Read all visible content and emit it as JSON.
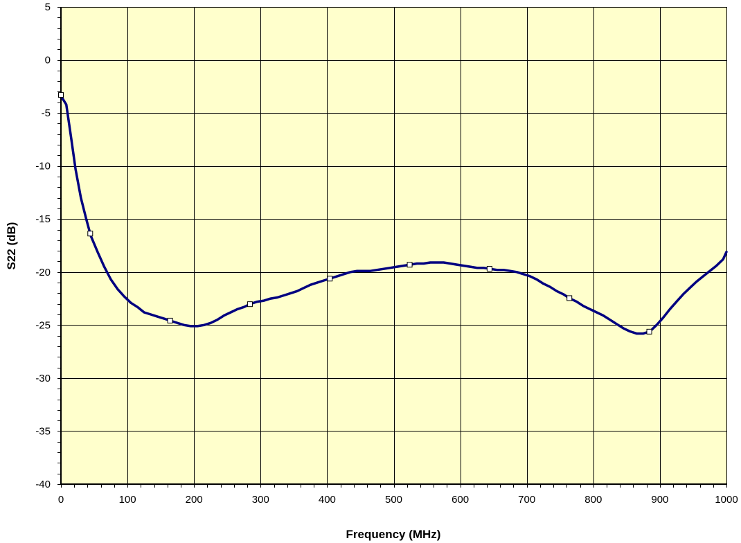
{
  "chart_data": {
    "type": "line",
    "title": "",
    "xlabel": "Frequency (MHz)",
    "ylabel": "S22 (dB)",
    "xlim": [
      0,
      1000
    ],
    "ylim": [
      -40,
      5
    ],
    "xticks": [
      0,
      100,
      200,
      300,
      400,
      500,
      600,
      700,
      800,
      900,
      1000
    ],
    "yticks": [
      5,
      0,
      -5,
      -10,
      -15,
      -20,
      -25,
      -30,
      -35,
      -40
    ],
    "grid": true,
    "legend": "none",
    "colors": {
      "plot_bg": "#ffffcc",
      "line": "#000080",
      "grid": "#000000",
      "marker_fill": "#ffffff"
    },
    "series": [
      {
        "x": [
          0,
          3,
          8,
          15,
          22,
          30,
          38,
          45,
          55,
          65,
          75,
          85,
          95,
          105,
          115,
          125,
          135,
          145,
          155,
          165,
          175,
          185,
          195,
          205,
          215,
          225,
          235,
          245,
          255,
          265,
          275,
          285,
          295,
          305,
          315,
          325,
          335,
          345,
          355,
          365,
          375,
          385,
          395,
          405,
          415,
          425,
          435,
          445,
          455,
          465,
          475,
          485,
          495,
          505,
          515,
          525,
          535,
          545,
          555,
          565,
          575,
          585,
          595,
          605,
          615,
          625,
          635,
          645,
          655,
          665,
          675,
          685,
          695,
          705,
          715,
          725,
          735,
          745,
          755,
          765,
          775,
          785,
          795,
          805,
          815,
          825,
          835,
          845,
          855,
          865,
          875,
          885,
          895,
          905,
          915,
          925,
          935,
          945,
          955,
          965,
          975,
          985,
          995,
          1000
        ],
        "y": [
          -3.3,
          -3.7,
          -4.2,
          -7.2,
          -10.3,
          -13.0,
          -15.0,
          -16.6,
          -18.1,
          -19.5,
          -20.7,
          -21.6,
          -22.3,
          -22.9,
          -23.3,
          -23.8,
          -24.0,
          -24.2,
          -24.4,
          -24.6,
          -24.8,
          -25.0,
          -25.1,
          -25.1,
          -25.0,
          -24.8,
          -24.5,
          -24.1,
          -23.8,
          -23.5,
          -23.3,
          -23.0,
          -22.8,
          -22.7,
          -22.5,
          -22.4,
          -22.2,
          -22.0,
          -21.8,
          -21.5,
          -21.2,
          -21.0,
          -20.8,
          -20.6,
          -20.4,
          -20.2,
          -20.0,
          -19.9,
          -19.9,
          -19.9,
          -19.8,
          -19.7,
          -19.6,
          -19.5,
          -19.4,
          -19.3,
          -19.2,
          -19.2,
          -19.1,
          -19.1,
          -19.1,
          -19.2,
          -19.3,
          -19.4,
          -19.5,
          -19.6,
          -19.6,
          -19.7,
          -19.8,
          -19.8,
          -19.9,
          -20.0,
          -20.2,
          -20.4,
          -20.7,
          -21.1,
          -21.4,
          -21.8,
          -22.1,
          -22.5,
          -22.8,
          -23.2,
          -23.5,
          -23.8,
          -24.1,
          -24.5,
          -24.9,
          -25.3,
          -25.6,
          -25.8,
          -25.8,
          -25.6,
          -25.0,
          -24.3,
          -23.5,
          -22.8,
          -22.1,
          -21.5,
          -20.9,
          -20.4,
          -19.9,
          -19.4,
          -18.8,
          -18.1
        ]
      }
    ],
    "marker_x": [
      0,
      44,
      164,
      284,
      404,
      524,
      644,
      764,
      884
    ]
  }
}
